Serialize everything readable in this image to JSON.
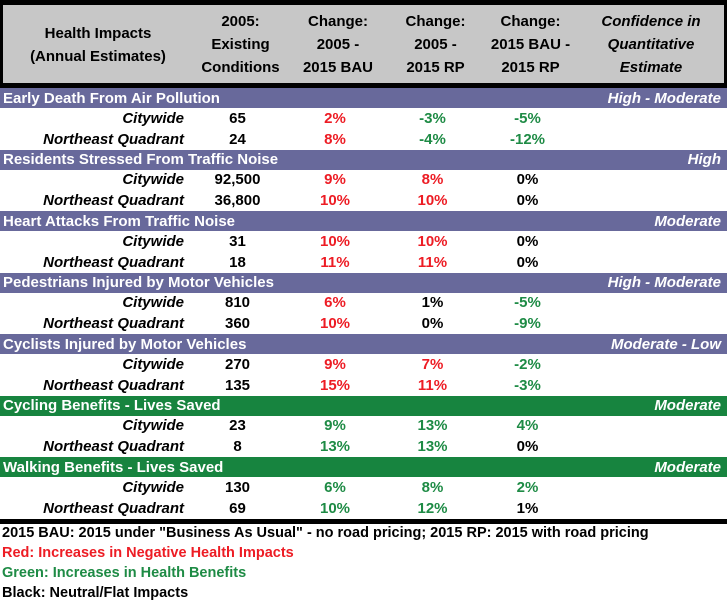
{
  "colors": {
    "header_gray": "#c7c7c7",
    "purple_band": "#68699b",
    "green_band": "#17843f",
    "red_text": "#ed1c24",
    "green_text": "#1e8b45"
  },
  "header": {
    "columns": [
      {
        "line1": "Health Impacts",
        "line2": "(Annual Estimates)",
        "line3": ""
      },
      {
        "line1": "2005:",
        "line2": "Existing",
        "line3": "Conditions"
      },
      {
        "line1": "Change:",
        "line2": "2005 -",
        "line3": "2015 BAU"
      },
      {
        "line1": "Change:",
        "line2": "2005 -",
        "line3": "2015 RP"
      },
      {
        "line1": "Change:",
        "line2": "2015 BAU -",
        "line3": "2015 RP"
      },
      {
        "line1": "Confidence in",
        "line2": "Quantitative",
        "line3": "Estimate"
      }
    ]
  },
  "sections": [
    {
      "title": "Early Death From Air Pollution",
      "confidence": "High - Moderate",
      "theme": "purple",
      "rows": [
        {
          "label": "Citywide",
          "value": "65",
          "changes": [
            {
              "text": "2%",
              "color": "red"
            },
            {
              "text": "-3%",
              "color": "green"
            },
            {
              "text": "-5%",
              "color": "green"
            }
          ]
        },
        {
          "label": "Northeast Quadrant",
          "value": "24",
          "changes": [
            {
              "text": "8%",
              "color": "red"
            },
            {
              "text": "-4%",
              "color": "green"
            },
            {
              "text": "-12%",
              "color": "green"
            }
          ]
        }
      ]
    },
    {
      "title": "Residents Stressed From Traffic Noise",
      "confidence": "High",
      "theme": "purple",
      "rows": [
        {
          "label": "Citywide",
          "value": "92,500",
          "changes": [
            {
              "text": "9%",
              "color": "red"
            },
            {
              "text": "8%",
              "color": "red"
            },
            {
              "text": "0%",
              "color": "black"
            }
          ]
        },
        {
          "label": "Northeast Quadrant",
          "value": "36,800",
          "changes": [
            {
              "text": "10%",
              "color": "red"
            },
            {
              "text": "10%",
              "color": "red"
            },
            {
              "text": "0%",
              "color": "black"
            }
          ]
        }
      ]
    },
    {
      "title": "Heart Attacks From Traffic Noise",
      "confidence": "Moderate",
      "theme": "purple",
      "rows": [
        {
          "label": "Citywide",
          "value": "31",
          "changes": [
            {
              "text": "10%",
              "color": "red"
            },
            {
              "text": "10%",
              "color": "red"
            },
            {
              "text": "0%",
              "color": "black"
            }
          ]
        },
        {
          "label": "Northeast Quadrant",
          "value": "18",
          "changes": [
            {
              "text": "11%",
              "color": "red"
            },
            {
              "text": "11%",
              "color": "red"
            },
            {
              "text": "0%",
              "color": "black"
            }
          ]
        }
      ]
    },
    {
      "title": "Pedestrians Injured by Motor Vehicles",
      "confidence": "High - Moderate",
      "theme": "purple",
      "rows": [
        {
          "label": "Citywide",
          "value": "810",
          "changes": [
            {
              "text": "6%",
              "color": "red"
            },
            {
              "text": "1%",
              "color": "black"
            },
            {
              "text": "-5%",
              "color": "green"
            }
          ]
        },
        {
          "label": "Northeast Quadrant",
          "value": "360",
          "changes": [
            {
              "text": "10%",
              "color": "red"
            },
            {
              "text": "0%",
              "color": "black"
            },
            {
              "text": "-9%",
              "color": "green"
            }
          ]
        }
      ]
    },
    {
      "title": "Cyclists Injured by Motor Vehicles",
      "confidence": "Moderate - Low",
      "theme": "purple",
      "rows": [
        {
          "label": "Citywide",
          "value": "270",
          "changes": [
            {
              "text": "9%",
              "color": "red"
            },
            {
              "text": "7%",
              "color": "red"
            },
            {
              "text": "-2%",
              "color": "green"
            }
          ]
        },
        {
          "label": "Northeast Quadrant",
          "value": "135",
          "changes": [
            {
              "text": "15%",
              "color": "red"
            },
            {
              "text": "11%",
              "color": "red"
            },
            {
              "text": "-3%",
              "color": "green"
            }
          ]
        }
      ]
    },
    {
      "title": "Cycling Benefits - Lives Saved",
      "confidence": "Moderate",
      "theme": "green",
      "rows": [
        {
          "label": "Citywide",
          "value": "23",
          "changes": [
            {
              "text": "9%",
              "color": "green"
            },
            {
              "text": "13%",
              "color": "green"
            },
            {
              "text": "4%",
              "color": "green"
            }
          ]
        },
        {
          "label": "Northeast Quadrant",
          "value": "8",
          "changes": [
            {
              "text": "13%",
              "color": "green"
            },
            {
              "text": "13%",
              "color": "green"
            },
            {
              "text": "0%",
              "color": "black"
            }
          ]
        }
      ]
    },
    {
      "title": "Walking Benefits - Lives Saved",
      "confidence": "Moderate",
      "theme": "green",
      "rows": [
        {
          "label": "Citywide",
          "value": "130",
          "changes": [
            {
              "text": "6%",
              "color": "green"
            },
            {
              "text": "8%",
              "color": "green"
            },
            {
              "text": "2%",
              "color": "green"
            }
          ]
        },
        {
          "label": "Northeast Quadrant",
          "value": "69",
          "changes": [
            {
              "text": "10%",
              "color": "green"
            },
            {
              "text": "12%",
              "color": "green"
            },
            {
              "text": "1%",
              "color": "black"
            }
          ]
        }
      ]
    }
  ],
  "footer": {
    "note": "2015 BAU: 2015 under \"Business As Usual\" - no road pricing; 2015 RP: 2015 with road pricing",
    "legends": [
      {
        "text": "Red: Increases in Negative Health Impacts",
        "color": "red"
      },
      {
        "text": "Green: Increases in Health Benefits",
        "color": "green"
      },
      {
        "text": "Black: Neutral/Flat Impacts",
        "color": "black"
      }
    ]
  }
}
